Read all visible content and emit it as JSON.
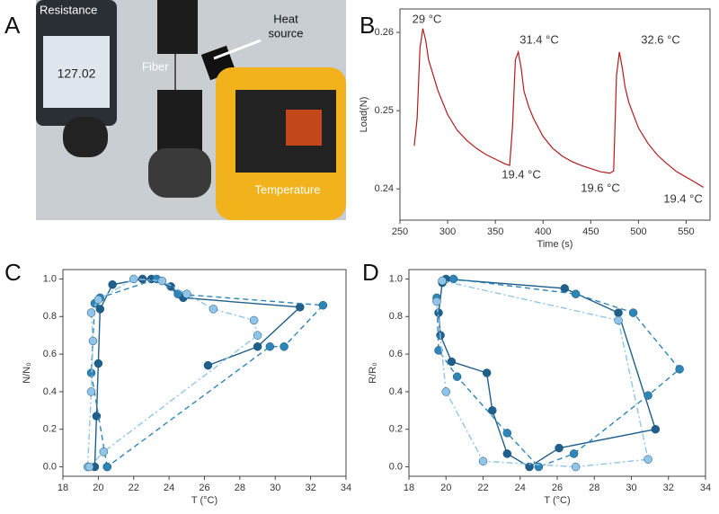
{
  "panel_labels": [
    "A",
    "B",
    "C",
    "D"
  ],
  "photo": {
    "labels": [
      "Resistance",
      "127.02",
      "Fiber",
      [
        "Heat",
        "source"
      ],
      "Temperature"
    ]
  },
  "chart_data": [
    {
      "type": "line",
      "xlabel": "Time (s)",
      "ylabel": "Load(N)",
      "color": "#b01c1c",
      "markers": false,
      "xlim": [
        250,
        575
      ],
      "xticks": [
        250,
        300,
        350,
        400,
        450,
        500,
        550
      ],
      "ylim": [
        0.236,
        0.263
      ],
      "yticks": [
        0.24,
        0.25,
        0.26
      ],
      "annotations": [
        "29 °C",
        "31.4 °C",
        "32.6 °C",
        "19.4 °C",
        "19.6 °C",
        "19.4 °C"
      ],
      "series": [
        {
          "color": "#b01c1c",
          "dash": "solid",
          "x": [
            265,
            268,
            271,
            274,
            277,
            280,
            285,
            290,
            300,
            310,
            320,
            330,
            340,
            350,
            360,
            365,
            368,
            371,
            374,
            377,
            380,
            385,
            390,
            400,
            410,
            420,
            430,
            440,
            450,
            460,
            470,
            474,
            477,
            480,
            483,
            486,
            490,
            500,
            510,
            520,
            530,
            540,
            550,
            560,
            568
          ],
          "values": [
            0.2455,
            0.249,
            0.258,
            0.2605,
            0.259,
            0.2565,
            0.2545,
            0.2525,
            0.2495,
            0.2475,
            0.2462,
            0.2452,
            0.2444,
            0.2438,
            0.2432,
            0.243,
            0.248,
            0.2565,
            0.2575,
            0.2555,
            0.2525,
            0.2505,
            0.249,
            0.2467,
            0.2452,
            0.2442,
            0.2435,
            0.243,
            0.2426,
            0.2422,
            0.242,
            0.2423,
            0.2545,
            0.2575,
            0.2555,
            0.253,
            0.251,
            0.2478,
            0.2458,
            0.2443,
            0.2432,
            0.2422,
            0.2415,
            0.2408,
            0.2402
          ]
        }
      ]
    },
    {
      "type": "line",
      "xlabel": "T (°C)",
      "ylabel": "N/N₀",
      "markers": true,
      "xlim": [
        18,
        34
      ],
      "xticks": [
        18,
        20,
        22,
        24,
        26,
        28,
        30,
        32,
        34
      ],
      "ylim": [
        -0.05,
        1.05
      ],
      "yticks": [
        {
          "value": 0,
          "label": "0.0"
        },
        0.2,
        0.4,
        0.6,
        0.8,
        {
          "value": 1,
          "label": "1.0"
        }
      ],
      "series": [
        {
          "color": "#1f5f8b",
          "dash": "solid",
          "x": [
            19.8,
            19.9,
            20.0,
            20.1,
            20.8,
            22.5,
            23.0,
            24.1,
            24.8,
            31.4,
            29.0,
            26.2
          ],
          "values": [
            0.0,
            0.27,
            0.55,
            0.84,
            0.97,
            1.0,
            1.0,
            0.96,
            0.9,
            0.85,
            0.64,
            0.54
          ]
        },
        {
          "color": "#2e86b8",
          "dash": "dashed",
          "x": [
            20.5,
            19.6,
            19.8,
            20.1,
            23.3,
            24.5,
            32.7,
            30.5,
            29.7,
            20.5
          ],
          "values": [
            0.0,
            0.5,
            0.87,
            0.9,
            1.0,
            0.92,
            0.86,
            0.64,
            0.64,
            0.0
          ]
        },
        {
          "color": "#8fc5e8",
          "dash": "dashdot",
          "x": [
            19.4,
            19.6,
            19.7,
            19.6,
            20.0,
            22.0,
            23.6,
            25.0,
            26.5,
            28.8,
            29.0,
            20.3,
            19.5
          ],
          "values": [
            0.0,
            0.4,
            0.67,
            0.82,
            0.89,
            1.0,
            0.99,
            0.92,
            0.84,
            0.78,
            0.7,
            0.08,
            0.0
          ]
        }
      ]
    },
    {
      "type": "line",
      "xlabel": "T (°C)",
      "ylabel": "R/R₀",
      "markers": true,
      "xlim": [
        18,
        34
      ],
      "xticks": [
        18,
        20,
        22,
        24,
        26,
        28,
        30,
        32,
        34
      ],
      "ylim": [
        -0.05,
        1.05
      ],
      "yticks": [
        {
          "value": 0,
          "label": "0.0"
        },
        0.2,
        0.4,
        0.6,
        0.8,
        {
          "value": 1,
          "label": "1.0"
        }
      ],
      "series": [
        {
          "color": "#1f5f8b",
          "dash": "solid",
          "x": [
            20.0,
            26.4,
            29.3,
            31.3,
            26.1,
            24.5,
            23.3,
            22.5,
            22.2,
            20.3,
            19.7,
            19.6,
            19.8
          ],
          "values": [
            1.0,
            0.95,
            0.82,
            0.2,
            0.1,
            0.0,
            0.07,
            0.3,
            0.5,
            0.56,
            0.7,
            0.82,
            0.98
          ]
        },
        {
          "color": "#2e86b8",
          "dash": "dashed",
          "x": [
            20.4,
            27.0,
            30.1,
            32.6,
            30.9,
            26.9,
            25.0,
            23.3,
            20.6,
            19.6,
            19.5
          ],
          "values": [
            1.0,
            0.92,
            0.82,
            0.52,
            0.38,
            0.07,
            0.0,
            0.18,
            0.48,
            0.62,
            0.9
          ]
        },
        {
          "color": "#8fc5e8",
          "dash": "dashdot",
          "x": [
            19.8,
            29.3,
            30.9,
            27.0,
            22.0,
            20.0,
            19.5
          ],
          "values": [
            0.99,
            0.78,
            0.04,
            0.0,
            0.03,
            0.4,
            0.88
          ]
        }
      ]
    }
  ]
}
